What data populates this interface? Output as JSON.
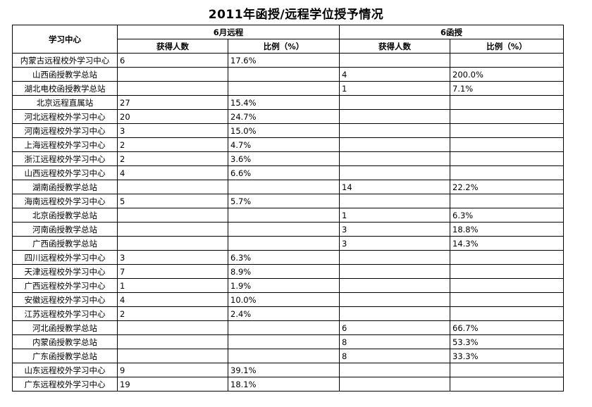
{
  "title": "2011年函授/远程学位授予情况",
  "headers": {
    "center": "学习中心",
    "group_remote": "6月远程",
    "group_corr": "6函授",
    "count": "获得人数",
    "ratio": "比例（%）"
  },
  "rows": [
    {
      "name": "内蒙古远程校外学习中心",
      "r_count": "6",
      "r_ratio": "17.6%",
      "c_count": "",
      "c_ratio": ""
    },
    {
      "name": "山西函授教学总站",
      "r_count": "",
      "r_ratio": "",
      "c_count": "4",
      "c_ratio": "200.0%"
    },
    {
      "name": "湖北电校函授教学总站",
      "r_count": "",
      "r_ratio": "",
      "c_count": "1",
      "c_ratio": "7.1%"
    },
    {
      "name": "北京远程直属站",
      "r_count": "27",
      "r_ratio": "15.4%",
      "c_count": "",
      "c_ratio": ""
    },
    {
      "name": "河北远程校外学习中心",
      "r_count": "20",
      "r_ratio": "24.7%",
      "c_count": "",
      "c_ratio": ""
    },
    {
      "name": "河南远程校外学习中心",
      "r_count": "3",
      "r_ratio": "15.0%",
      "c_count": "",
      "c_ratio": ""
    },
    {
      "name": "上海远程校外学习中心",
      "r_count": "2",
      "r_ratio": "4.7%",
      "c_count": "",
      "c_ratio": ""
    },
    {
      "name": "浙江远程校外学习中心",
      "r_count": "2",
      "r_ratio": "3.6%",
      "c_count": "",
      "c_ratio": ""
    },
    {
      "name": "山西远程校外学习中心",
      "r_count": "4",
      "r_ratio": "6.6%",
      "c_count": "",
      "c_ratio": ""
    },
    {
      "name": "湖南函授教学总站",
      "r_count": "",
      "r_ratio": "",
      "c_count": "14",
      "c_ratio": "22.2%"
    },
    {
      "name": "海南远程校外学习中心",
      "r_count": "5",
      "r_ratio": "5.7%",
      "c_count": "",
      "c_ratio": ""
    },
    {
      "name": "北京函授教学总站",
      "r_count": "",
      "r_ratio": "",
      "c_count": "1",
      "c_ratio": "6.3%"
    },
    {
      "name": "河南函授教学总站",
      "r_count": "",
      "r_ratio": "",
      "c_count": "3",
      "c_ratio": "18.8%"
    },
    {
      "name": "广西函授教学总站",
      "r_count": "",
      "r_ratio": "",
      "c_count": "3",
      "c_ratio": "14.3%"
    },
    {
      "name": "四川远程校外学习中心",
      "r_count": "3",
      "r_ratio": "6.3%",
      "c_count": "",
      "c_ratio": ""
    },
    {
      "name": "天津远程校外学习中心",
      "r_count": "7",
      "r_ratio": "8.9%",
      "c_count": "",
      "c_ratio": ""
    },
    {
      "name": "广西远程校外学习中心",
      "r_count": "1",
      "r_ratio": "1.9%",
      "c_count": "",
      "c_ratio": ""
    },
    {
      "name": "安徽远程校外学习中心",
      "r_count": "4",
      "r_ratio": "10.0%",
      "c_count": "",
      "c_ratio": ""
    },
    {
      "name": "江苏远程校外学习中心",
      "r_count": "2",
      "r_ratio": "2.4%",
      "c_count": "",
      "c_ratio": ""
    },
    {
      "name": "河北函授教学总站",
      "r_count": "",
      "r_ratio": "",
      "c_count": "6",
      "c_ratio": "66.7%"
    },
    {
      "name": "内蒙函授教学总站",
      "r_count": "",
      "r_ratio": "",
      "c_count": "8",
      "c_ratio": "53.3%"
    },
    {
      "name": "广东函授教学总站",
      "r_count": "",
      "r_ratio": "",
      "c_count": "8",
      "c_ratio": "33.3%"
    },
    {
      "name": "山东远程校外学习中心",
      "r_count": "9",
      "r_ratio": "39.1%",
      "c_count": "",
      "c_ratio": ""
    },
    {
      "name": "广东远程校外学习中心",
      "r_count": "19",
      "r_ratio": "18.1%",
      "c_count": "",
      "c_ratio": ""
    }
  ]
}
